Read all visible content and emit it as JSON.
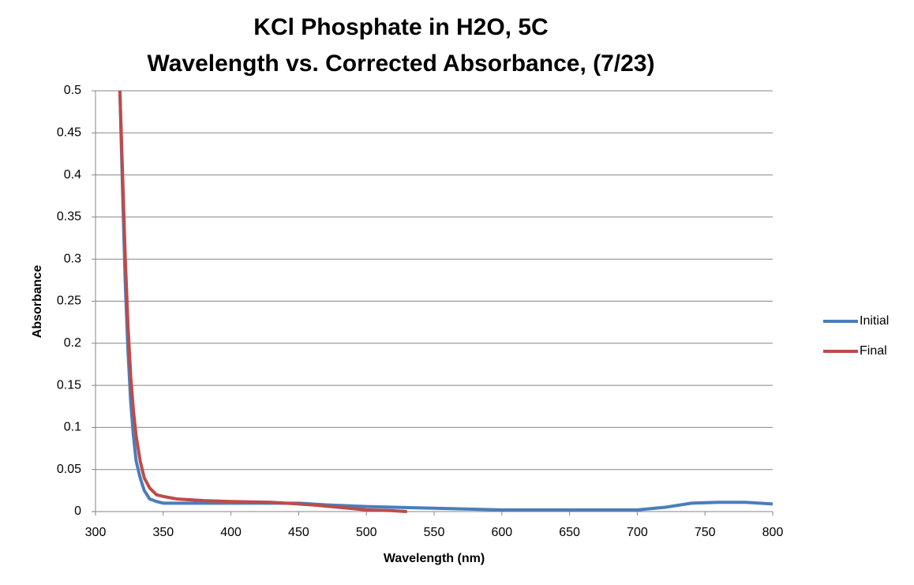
{
  "chart_data": {
    "type": "line",
    "title": "KCl Phosphate in H2O, 5C",
    "subtitle": "Wavelength vs. Corrected Absorbance, (7/23)",
    "x_label": "Wavelength (nm)",
    "y_label": "Absorbance",
    "xlim": [
      300,
      800
    ],
    "xticks": [
      300,
      350,
      400,
      450,
      500,
      550,
      600,
      650,
      700,
      750,
      800
    ],
    "ylim": [
      0,
      0.5
    ],
    "yticks": [
      0,
      0.05,
      0.1,
      0.15,
      0.2,
      0.25,
      0.3,
      0.35,
      0.4,
      0.45,
      0.5
    ],
    "grid": true,
    "legend": "right",
    "series": [
      {
        "name": "Initial",
        "color": "#4a7ebb",
        "x": [
          318,
          320,
          322,
          324,
          326,
          328,
          330,
          333,
          336,
          340,
          345,
          350,
          400,
          450,
          470,
          500,
          550,
          600,
          650,
          700,
          720,
          740,
          760,
          780,
          800
        ],
        "values": [
          0.5,
          0.38,
          0.27,
          0.19,
          0.13,
          0.09,
          0.06,
          0.04,
          0.025,
          0.015,
          0.012,
          0.01,
          0.01,
          0.01,
          0.008,
          0.006,
          0.004,
          0.002,
          0.002,
          0.002,
          0.005,
          0.01,
          0.011,
          0.011,
          0.009
        ]
      },
      {
        "name": "Final",
        "color": "#be4b48",
        "x": [
          318,
          320,
          322,
          324,
          326,
          328,
          330,
          333,
          336,
          340,
          345,
          350,
          360,
          380,
          400,
          430,
          460,
          480,
          500,
          520,
          530
        ],
        "values": [
          0.5,
          0.4,
          0.3,
          0.22,
          0.16,
          0.12,
          0.09,
          0.06,
          0.04,
          0.028,
          0.02,
          0.018,
          0.015,
          0.013,
          0.012,
          0.011,
          0.008,
          0.005,
          0.002,
          0.001,
          0
        ]
      }
    ]
  }
}
